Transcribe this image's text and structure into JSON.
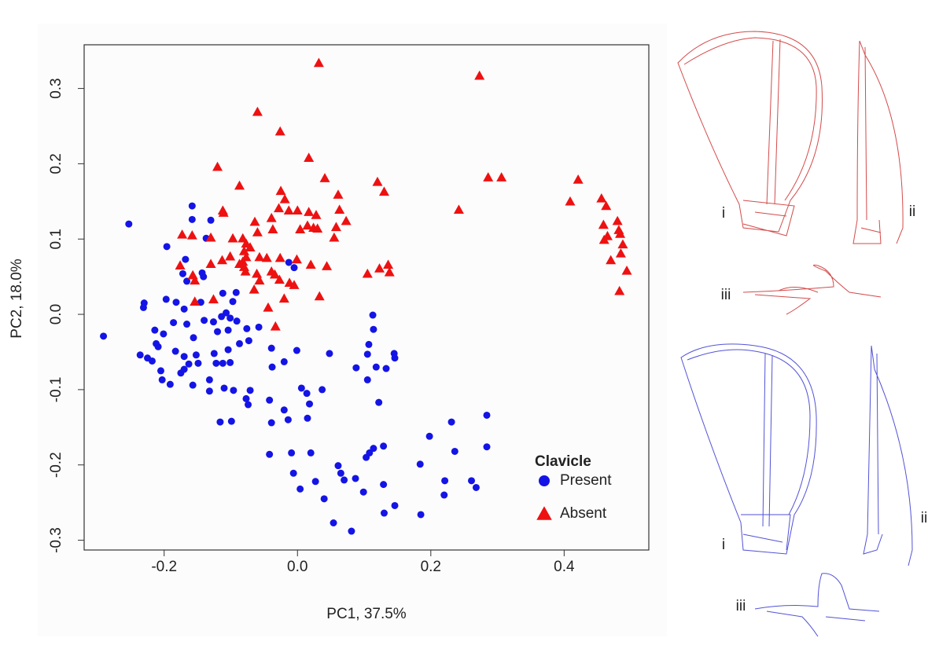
{
  "chart_data": {
    "type": "scatter",
    "xlabel": "PC1, 37.5%",
    "ylabel": "PC2, 18.0%",
    "xlim": [
      -0.32,
      0.527
    ],
    "ylim": [
      -0.313,
      0.358
    ],
    "xticks": [
      -0.2,
      {
        "value": 0,
        "label": "0.0"
      },
      0.2,
      0.4
    ],
    "yticks": [
      -0.3,
      -0.2,
      -0.1,
      {
        "value": 0,
        "label": "0.0"
      },
      0.1,
      0.2,
      0.3
    ],
    "legend_title": "Clavicle",
    "legend": "lower right",
    "series": [
      {
        "name": "Present",
        "color": "#1414e6",
        "marker": "circle",
        "x": [
          -0.253,
          -0.291,
          -0.158,
          -0.196,
          -0.158,
          -0.13,
          -0.137,
          -0.168,
          -0.172,
          -0.143,
          -0.141,
          -0.166,
          -0.23,
          -0.231,
          -0.197,
          -0.182,
          -0.17,
          -0.145,
          -0.112,
          -0.092,
          -0.097,
          -0.107,
          -0.114,
          -0.101,
          -0.126,
          -0.14,
          -0.091,
          -0.186,
          -0.166,
          -0.214,
          -0.201,
          -0.12,
          -0.104,
          -0.076,
          -0.058,
          -0.156,
          -0.212,
          -0.209,
          -0.073,
          -0.236,
          -0.225,
          -0.218,
          -0.205,
          -0.183,
          -0.17,
          -0.152,
          -0.149,
          -0.122,
          -0.112,
          -0.104,
          -0.087,
          -0.125,
          -0.039,
          -0.001,
          -0.02,
          -0.038,
          -0.163,
          -0.17,
          -0.175,
          -0.203,
          -0.191,
          -0.157,
          -0.132,
          -0.101,
          -0.132,
          -0.11,
          -0.096,
          -0.071,
          -0.077,
          -0.074,
          -0.116,
          -0.099,
          -0.042,
          -0.02,
          -0.039,
          -0.014,
          0.006,
          0.014,
          0.037,
          0.018,
          0.015,
          0.048,
          0.088,
          0.105,
          0.107,
          0.118,
          0.133,
          0.145,
          0.146,
          0.113,
          0.114,
          0.122,
          0.105,
          -0.042,
          -0.009,
          0.02,
          -0.006,
          0.004,
          0.027,
          0.04,
          0.061,
          0.065,
          0.07,
          0.087,
          0.099,
          0.103,
          0.108,
          0.114,
          0.129,
          0.129,
          0.13,
          0.146,
          0.054,
          0.081,
          0.184,
          0.185,
          0.198,
          0.221,
          0.22,
          0.231,
          0.236,
          0.261,
          0.268,
          0.284,
          0.284,
          -0.013,
          -0.005
        ],
        "values": [
          0.12,
          -0.029,
          0.126,
          0.09,
          0.144,
          0.125,
          0.101,
          0.073,
          0.054,
          0.055,
          0.05,
          0.044,
          0.015,
          0.009,
          0.02,
          0.016,
          0.007,
          0.016,
          0.028,
          0.029,
          0.017,
          0.002,
          -0.003,
          -0.005,
          -0.01,
          -0.008,
          -0.009,
          -0.011,
          -0.013,
          -0.021,
          -0.026,
          -0.023,
          -0.021,
          -0.019,
          -0.017,
          -0.031,
          -0.039,
          -0.043,
          -0.035,
          -0.054,
          -0.058,
          -0.062,
          -0.075,
          -0.049,
          -0.056,
          -0.054,
          -0.065,
          -0.065,
          -0.065,
          -0.047,
          -0.039,
          -0.052,
          -0.045,
          -0.048,
          -0.063,
          -0.07,
          -0.066,
          -0.073,
          -0.078,
          -0.087,
          -0.093,
          -0.094,
          -0.087,
          -0.064,
          -0.102,
          -0.098,
          -0.101,
          -0.101,
          -0.112,
          -0.12,
          -0.143,
          -0.142,
          -0.114,
          -0.127,
          -0.144,
          -0.14,
          -0.098,
          -0.105,
          -0.1,
          -0.119,
          -0.138,
          -0.052,
          -0.071,
          -0.053,
          -0.04,
          -0.07,
          -0.072,
          -0.052,
          -0.058,
          -0.001,
          -0.02,
          -0.117,
          -0.087,
          -0.186,
          -0.184,
          -0.184,
          -0.211,
          -0.232,
          -0.222,
          -0.245,
          -0.201,
          -0.211,
          -0.22,
          -0.218,
          -0.236,
          -0.19,
          -0.184,
          -0.178,
          -0.175,
          -0.226,
          -0.264,
          -0.254,
          -0.277,
          -0.288,
          -0.199,
          -0.266,
          -0.162,
          -0.221,
          -0.24,
          -0.143,
          -0.182,
          -0.221,
          -0.23,
          -0.134,
          -0.176,
          0.069,
          0.062
        ]
      },
      {
        "name": "Absent",
        "color": "#ee1111",
        "marker": "triangle",
        "x": [
          0.032,
          0.273,
          -0.06,
          -0.026,
          -0.12,
          0.017,
          -0.087,
          0.041,
          0.12,
          0.13,
          0.286,
          0.306,
          0.421,
          0.409,
          0.456,
          0.463,
          0.459,
          0.48,
          0.482,
          0.484,
          0.488,
          0.465,
          0.46,
          0.47,
          0.485,
          0.494,
          0.483,
          0.242,
          -0.025,
          -0.019,
          -0.028,
          -0.013,
          0.061,
          0.063,
          0.073,
          0.0,
          0.017,
          0.028,
          0.015,
          0.024,
          0.03,
          0.004,
          -0.112,
          -0.111,
          -0.039,
          -0.037,
          -0.064,
          -0.06,
          0.058,
          0.055,
          -0.173,
          -0.158,
          -0.13,
          -0.097,
          -0.082,
          -0.077,
          -0.08,
          -0.071,
          -0.101,
          -0.077,
          -0.057,
          -0.046,
          -0.026,
          -0.001,
          -0.176,
          -0.13,
          -0.113,
          -0.087,
          -0.082,
          -0.157,
          -0.154,
          -0.08,
          -0.078,
          -0.061,
          -0.057,
          -0.039,
          -0.034,
          -0.027,
          -0.012,
          -0.005,
          0.02,
          0.044,
          0.105,
          0.123,
          0.136,
          0.138,
          -0.154,
          -0.126,
          -0.065,
          -0.044,
          -0.02,
          -0.033,
          0.033
        ],
        "values": [
          0.334,
          0.317,
          0.269,
          0.243,
          0.196,
          0.208,
          0.171,
          0.181,
          0.176,
          0.163,
          0.182,
          0.182,
          0.179,
          0.15,
          0.154,
          0.144,
          0.119,
          0.124,
          0.112,
          0.107,
          0.093,
          0.104,
          0.099,
          0.072,
          0.081,
          0.058,
          0.031,
          0.139,
          0.164,
          0.153,
          0.141,
          0.138,
          0.159,
          0.139,
          0.124,
          0.138,
          0.136,
          0.132,
          0.118,
          0.115,
          0.114,
          0.113,
          0.138,
          0.135,
          0.128,
          0.113,
          0.123,
          0.109,
          0.116,
          0.102,
          0.106,
          0.105,
          0.102,
          0.101,
          0.101,
          0.094,
          0.084,
          0.089,
          0.077,
          0.076,
          0.076,
          0.075,
          0.075,
          0.073,
          0.065,
          0.067,
          0.072,
          0.067,
          0.07,
          0.052,
          0.045,
          0.063,
          0.057,
          0.054,
          0.045,
          0.057,
          0.053,
          0.046,
          0.042,
          0.039,
          0.066,
          0.064,
          0.054,
          0.061,
          0.066,
          0.056,
          0.017,
          0.02,
          0.033,
          0.009,
          0.021,
          -0.016,
          0.024
        ]
      }
    ]
  },
  "illustrations": {
    "absent_labels": [
      "i",
      "ii",
      "iii"
    ],
    "present_labels": [
      "i",
      "ii",
      "iii"
    ]
  }
}
